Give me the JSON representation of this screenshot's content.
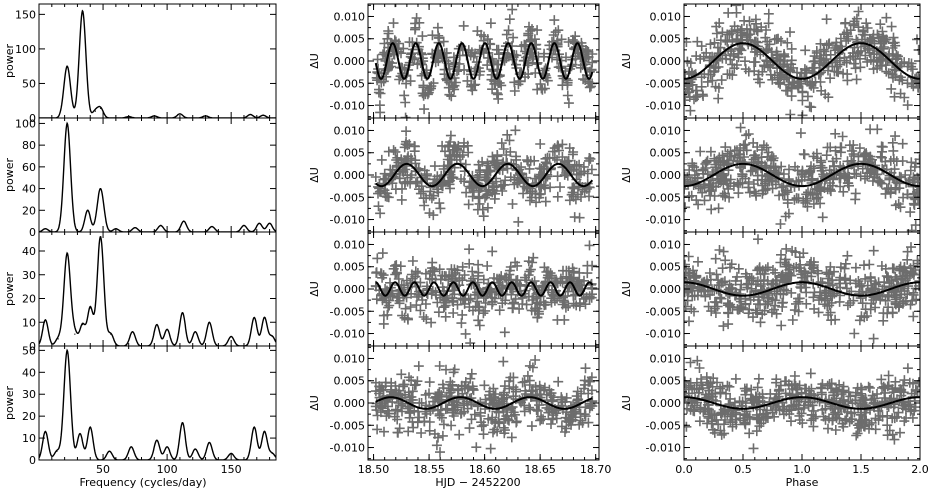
{
  "colors": {
    "observations": "#6d6d6d",
    "model": "#000000",
    "axes": "#000000"
  },
  "periodogram": {
    "xlabel": "Frequency (cycles/day)",
    "ylabel": "power",
    "xticks": [
      "50",
      "100",
      "150"
    ]
  },
  "timeseries": {
    "xlabel": "HJD − 2452200",
    "ylabel": "ΔU",
    "xticks": [
      "18.50",
      "18.55",
      "18.60",
      "18.65",
      "18.70"
    ],
    "yticks": [
      "0.010",
      "0.005",
      "0.000",
      "-0.005",
      "-0.010"
    ]
  },
  "phased": {
    "xlabel": "Phase",
    "ylabel": "ΔU",
    "xticks": [
      "0.0",
      "0.5",
      "1.0",
      "1.5",
      "2.0"
    ],
    "yticks": [
      "0.010",
      "0.005",
      "0.000",
      "-0.005",
      "-0.010"
    ]
  },
  "chart_data": [
    {
      "type": "line",
      "panel": "periodogram",
      "row": 1,
      "xlabel": "",
      "ylabel": "power",
      "xlim": [
        0,
        185
      ],
      "ylim": [
        0,
        165
      ],
      "yticks": [
        "0",
        "50",
        "100",
        "150"
      ],
      "peaks": [
        [
          22,
          75
        ],
        [
          34,
          155
        ],
        [
          44,
          10
        ],
        [
          48,
          14
        ],
        [
          70,
          2
        ],
        [
          90,
          3
        ],
        [
          110,
          6
        ],
        [
          130,
          3
        ],
        [
          165,
          5
        ],
        [
          175,
          4
        ]
      ]
    },
    {
      "type": "line",
      "panel": "periodogram",
      "row": 2,
      "xlabel": "",
      "ylabel": "power",
      "xlim": [
        0,
        185
      ],
      "ylim": [
        0,
        105
      ],
      "yticks": [
        "0",
        "20",
        "40",
        "60",
        "80",
        "100"
      ],
      "peaks": [
        [
          5,
          3
        ],
        [
          22,
          100
        ],
        [
          38,
          20
        ],
        [
          48,
          40
        ],
        [
          60,
          3
        ],
        [
          75,
          4
        ],
        [
          95,
          6
        ],
        [
          113,
          10
        ],
        [
          135,
          5
        ],
        [
          160,
          6
        ],
        [
          172,
          8
        ],
        [
          180,
          8
        ]
      ]
    },
    {
      "type": "line",
      "panel": "periodogram",
      "row": 3,
      "xlabel": "",
      "ylabel": "power",
      "xlim": [
        0,
        185
      ],
      "ylim": [
        0,
        48
      ],
      "yticks": [
        "0",
        "10",
        "20",
        "30",
        "40"
      ],
      "peaks": [
        [
          5,
          11
        ],
        [
          15,
          3
        ],
        [
          22,
          39
        ],
        [
          28,
          5
        ],
        [
          34,
          9
        ],
        [
          40,
          16
        ],
        [
          48,
          46
        ],
        [
          56,
          5
        ],
        [
          73,
          6
        ],
        [
          92,
          9
        ],
        [
          100,
          7
        ],
        [
          112,
          14
        ],
        [
          122,
          6
        ],
        [
          133,
          10
        ],
        [
          150,
          4
        ],
        [
          168,
          12
        ],
        [
          176,
          12
        ],
        [
          182,
          4
        ]
      ]
    },
    {
      "type": "line",
      "panel": "periodogram",
      "row": 4,
      "xlabel": "Frequency (cycles/day)",
      "ylabel": "power",
      "xlim": [
        0,
        185
      ],
      "ylim": [
        0,
        52
      ],
      "yticks": [
        "0",
        "10",
        "20",
        "30",
        "40",
        "50"
      ],
      "peaks": [
        [
          5,
          13
        ],
        [
          14,
          4
        ],
        [
          22,
          50
        ],
        [
          32,
          12
        ],
        [
          40,
          15
        ],
        [
          55,
          4
        ],
        [
          72,
          6
        ],
        [
          92,
          9
        ],
        [
          100,
          6
        ],
        [
          112,
          17
        ],
        [
          122,
          5
        ],
        [
          133,
          8
        ],
        [
          150,
          3
        ],
        [
          168,
          15
        ],
        [
          176,
          13
        ],
        [
          182,
          3
        ]
      ]
    },
    {
      "type": "scatter",
      "panel": "timeseries",
      "row": 1,
      "xlabel": "",
      "ylabel": "ΔU",
      "xlim": [
        18.495,
        18.703
      ],
      "ylim": [
        -0.0128,
        0.0128
      ],
      "x_range": [
        18.502,
        18.697
      ],
      "n_points": 420,
      "scatter_sd": 0.003,
      "model": {
        "amplitude": 0.004,
        "period": 0.0208,
        "phase": 0.0,
        "offset": 0.0
      }
    },
    {
      "type": "scatter",
      "panel": "timeseries",
      "row": 2,
      "xlabel": "",
      "ylabel": "ΔU",
      "xlim": [
        18.495,
        18.703
      ],
      "ylim": [
        -0.0128,
        0.0128
      ],
      "x_range": [
        18.502,
        18.697
      ],
      "n_points": 420,
      "scatter_sd": 0.003,
      "model": {
        "amplitude": 0.0025,
        "period": 0.0455,
        "phase": 0.0,
        "offset": 0.0
      }
    },
    {
      "type": "scatter",
      "panel": "timeseries",
      "row": 3,
      "xlabel": "",
      "ylabel": "ΔU",
      "xlim": [
        18.495,
        18.703
      ],
      "ylim": [
        -0.0128,
        0.0128
      ],
      "x_range": [
        18.502,
        18.697
      ],
      "n_points": 420,
      "scatter_sd": 0.003,
      "model": {
        "amplitude": 0.0015,
        "period": 0.0175,
        "phase": 0.0,
        "offset": 0.0
      }
    },
    {
      "type": "scatter",
      "panel": "timeseries",
      "row": 4,
      "xlabel": "HJD − 2452200",
      "ylabel": "ΔU",
      "xlim": [
        18.495,
        18.703
      ],
      "ylim": [
        -0.0128,
        0.0128
      ],
      "x_range": [
        18.502,
        18.697
      ],
      "n_points": 420,
      "scatter_sd": 0.003,
      "model": {
        "amplitude": 0.0013,
        "period": 0.0625,
        "phase": 0.0,
        "offset": 0.0
      }
    },
    {
      "type": "scatter",
      "panel": "phased",
      "row": 1,
      "xlabel": "",
      "ylabel": "ΔU",
      "xlim": [
        0.0,
        2.0
      ],
      "ylim": [
        -0.0128,
        0.0128
      ],
      "x_range": [
        0.0,
        2.0
      ],
      "n_points": 480,
      "scatter_sd": 0.0032,
      "model": {
        "amplitude": 0.004,
        "period": 1.0,
        "phase": -0.25,
        "offset": 0.0
      }
    },
    {
      "type": "scatter",
      "panel": "phased",
      "row": 2,
      "xlabel": "",
      "ylabel": "ΔU",
      "xlim": [
        0.0,
        2.0
      ],
      "ylim": [
        -0.0128,
        0.0128
      ],
      "x_range": [
        0.0,
        2.0
      ],
      "n_points": 480,
      "scatter_sd": 0.0032,
      "model": {
        "amplitude": 0.0025,
        "period": 1.0,
        "phase": -0.25,
        "offset": 0.0
      }
    },
    {
      "type": "scatter",
      "panel": "phased",
      "row": 3,
      "xlabel": "",
      "ylabel": "ΔU",
      "xlim": [
        0.0,
        2.0
      ],
      "ylim": [
        -0.0128,
        0.0128
      ],
      "x_range": [
        0.0,
        2.0
      ],
      "n_points": 480,
      "scatter_sd": 0.003,
      "model": {
        "amplitude": 0.0015,
        "period": 1.0,
        "phase": 0.25,
        "offset": 0.0
      }
    },
    {
      "type": "scatter",
      "panel": "phased",
      "row": 4,
      "xlabel": "Phase",
      "ylabel": "ΔU",
      "xlim": [
        0.0,
        2.0
      ],
      "ylim": [
        -0.0128,
        0.0128
      ],
      "x_range": [
        0.0,
        2.0
      ],
      "n_points": 480,
      "scatter_sd": 0.0028,
      "model": {
        "amplitude": 0.0013,
        "period": 1.0,
        "phase": 0.25,
        "offset": 0.0
      }
    }
  ]
}
